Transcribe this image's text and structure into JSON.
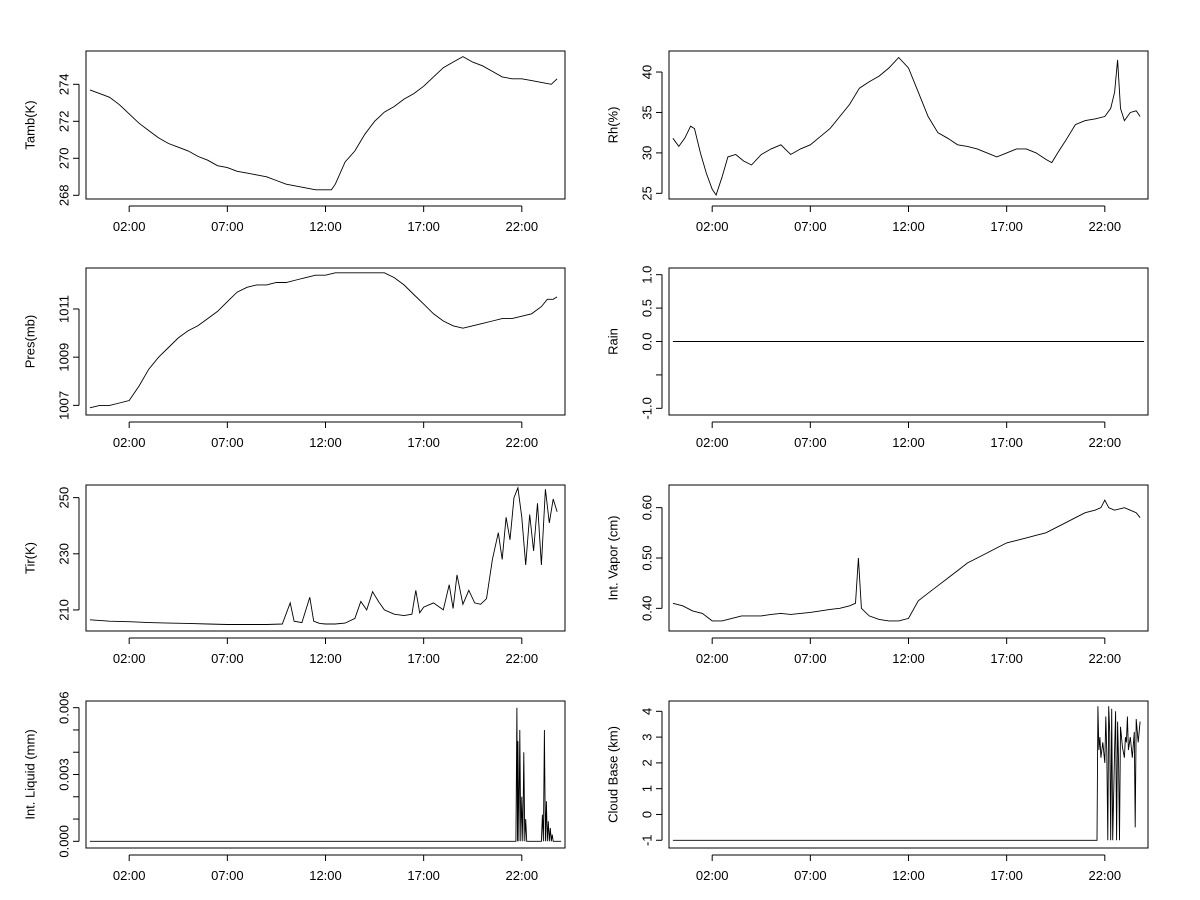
{
  "chart_data": [
    {
      "type": "line",
      "title": "",
      "xlabel": "",
      "ylabel": "Tamb(K)",
      "xlim": [
        -0.2,
        24.2
      ],
      "ylim": [
        267.8,
        275.8
      ],
      "xticks": [
        2,
        7,
        12,
        17,
        22
      ],
      "xtick_labels": [
        "02:00",
        "07:00",
        "12:00",
        "17:00",
        "22:00"
      ],
      "yticks": [
        268,
        270,
        272,
        274
      ],
      "ytick_labels": [
        "268",
        "270",
        "272",
        "274"
      ],
      "series": [
        {
          "x": [
            0.0,
            0.5,
            1.0,
            1.5,
            2.0,
            2.5,
            3.0,
            3.5,
            4.0,
            4.5,
            5.0,
            5.5,
            6.0,
            6.5,
            7.0,
            7.5,
            8.0,
            8.5,
            9.0,
            9.5,
            10.0,
            10.5,
            11.0,
            11.5,
            12.0,
            12.3,
            12.5,
            13.0,
            13.5,
            14.0,
            14.5,
            15.0,
            15.5,
            16.0,
            16.5,
            17.0,
            17.5,
            18.0,
            18.5,
            19.0,
            19.5,
            20.0,
            20.5,
            21.0,
            21.5,
            22.0,
            22.5,
            23.0,
            23.5,
            23.8
          ],
          "y": [
            273.7,
            273.5,
            273.3,
            272.9,
            272.4,
            271.9,
            271.5,
            271.1,
            270.8,
            270.6,
            270.4,
            270.1,
            269.9,
            269.6,
            269.5,
            269.3,
            269.2,
            269.1,
            269.0,
            268.8,
            268.6,
            268.5,
            268.4,
            268.3,
            268.3,
            268.3,
            268.6,
            269.8,
            270.4,
            271.3,
            272.0,
            272.5,
            272.8,
            273.2,
            273.5,
            273.9,
            274.4,
            274.9,
            275.2,
            275.5,
            275.2,
            275.0,
            274.7,
            274.4,
            274.3,
            274.3,
            274.2,
            274.1,
            274.0,
            274.3
          ]
        }
      ]
    },
    {
      "type": "line",
      "title": "",
      "xlabel": "",
      "ylabel": "Rh(%)",
      "xlim": [
        -0.2,
        24.2
      ],
      "ylim": [
        24.3,
        42.6
      ],
      "xticks": [
        2,
        7,
        12,
        17,
        22
      ],
      "xtick_labels": [
        "02:00",
        "07:00",
        "12:00",
        "17:00",
        "22:00"
      ],
      "yticks": [
        25,
        30,
        35,
        40
      ],
      "ytick_labels": [
        "25",
        "30",
        "35",
        "40"
      ],
      "series": [
        {
          "x": [
            0.0,
            0.3,
            0.6,
            0.9,
            1.1,
            1.4,
            1.7,
            2.0,
            2.2,
            2.5,
            2.8,
            3.2,
            3.6,
            4.0,
            4.5,
            5.0,
            5.5,
            6.0,
            6.5,
            7.0,
            7.5,
            8.0,
            8.5,
            9.0,
            9.5,
            10.0,
            10.5,
            11.0,
            11.5,
            12.0,
            12.5,
            13.0,
            13.5,
            14.0,
            14.5,
            15.0,
            15.5,
            16.0,
            16.5,
            17.0,
            17.5,
            18.0,
            18.5,
            19.0,
            19.3,
            19.6,
            20.0,
            20.5,
            21.0,
            21.5,
            22.0,
            22.3,
            22.5,
            22.65,
            22.8,
            23.0,
            23.3,
            23.6,
            23.8
          ],
          "y": [
            31.8,
            30.8,
            31.8,
            33.3,
            33.0,
            30.0,
            27.5,
            25.5,
            24.8,
            27.0,
            29.5,
            29.8,
            29.0,
            28.5,
            29.8,
            30.5,
            31.0,
            29.8,
            30.5,
            31.0,
            32.0,
            33.0,
            34.5,
            36.0,
            38.0,
            38.8,
            39.5,
            40.5,
            41.8,
            40.5,
            37.5,
            34.5,
            32.5,
            31.8,
            31.0,
            30.8,
            30.5,
            30.0,
            29.5,
            30.0,
            30.5,
            30.5,
            30.0,
            29.2,
            28.8,
            30.0,
            31.5,
            33.5,
            34.0,
            34.2,
            34.5,
            35.5,
            37.5,
            41.5,
            35.5,
            34.0,
            35.0,
            35.2,
            34.5
          ]
        }
      ]
    },
    {
      "type": "line",
      "title": "",
      "xlabel": "",
      "ylabel": "Pres(mb)",
      "xlim": [
        -0.2,
        24.2
      ],
      "ylim": [
        1006.6,
        1012.7
      ],
      "xticks": [
        2,
        7,
        12,
        17,
        22
      ],
      "xtick_labels": [
        "02:00",
        "07:00",
        "12:00",
        "17:00",
        "22:00"
      ],
      "yticks": [
        1007,
        1009,
        1011
      ],
      "ytick_labels": [
        "1007",
        "1009",
        "1011"
      ],
      "series": [
        {
          "x": [
            0.0,
            0.5,
            1.0,
            1.5,
            2.0,
            2.5,
            3.0,
            3.5,
            4.0,
            4.5,
            5.0,
            5.5,
            6.0,
            6.5,
            7.0,
            7.5,
            8.0,
            8.5,
            9.0,
            9.5,
            10.0,
            10.5,
            11.0,
            11.5,
            12.0,
            12.5,
            13.0,
            13.5,
            14.0,
            14.5,
            15.0,
            15.5,
            16.0,
            16.5,
            17.0,
            17.5,
            18.0,
            18.5,
            19.0,
            19.5,
            20.0,
            20.5,
            21.0,
            21.5,
            22.0,
            22.5,
            23.0,
            23.3,
            23.6,
            23.8
          ],
          "y": [
            1006.9,
            1007.0,
            1007.0,
            1007.1,
            1007.2,
            1007.8,
            1008.5,
            1009.0,
            1009.4,
            1009.8,
            1010.1,
            1010.3,
            1010.6,
            1010.9,
            1011.3,
            1011.7,
            1011.9,
            1012.0,
            1012.0,
            1012.1,
            1012.1,
            1012.2,
            1012.3,
            1012.4,
            1012.4,
            1012.5,
            1012.5,
            1012.5,
            1012.5,
            1012.5,
            1012.5,
            1012.3,
            1012.0,
            1011.6,
            1011.2,
            1010.8,
            1010.5,
            1010.3,
            1010.2,
            1010.3,
            1010.4,
            1010.5,
            1010.6,
            1010.6,
            1010.7,
            1010.8,
            1011.1,
            1011.4,
            1011.4,
            1011.5
          ]
        }
      ]
    },
    {
      "type": "line",
      "title": "",
      "xlabel": "",
      "ylabel": "Rain",
      "xlim": [
        -0.2,
        24.2
      ],
      "ylim": [
        -1.1,
        1.1
      ],
      "xticks": [
        2,
        7,
        12,
        17,
        22
      ],
      "xtick_labels": [
        "02:00",
        "07:00",
        "12:00",
        "17:00",
        "22:00"
      ],
      "yticks": [
        -1.0,
        -0.5,
        0.0,
        0.5,
        1.0
      ],
      "ytick_labels": [
        "-1.0",
        "",
        "0.0",
        "0.5",
        "1.0"
      ],
      "series": [
        {
          "x": [
            0.0,
            24.0
          ],
          "y": [
            0.0,
            0.0
          ]
        }
      ]
    },
    {
      "type": "line",
      "title": "",
      "xlabel": "",
      "ylabel": "Tir(K)",
      "xlim": [
        -0.2,
        24.2
      ],
      "ylim": [
        202.5,
        254.5
      ],
      "xticks": [
        2,
        7,
        12,
        17,
        22
      ],
      "xtick_labels": [
        "02:00",
        "07:00",
        "12:00",
        "17:00",
        "22:00"
      ],
      "yticks": [
        210,
        230,
        250
      ],
      "ytick_labels": [
        "210",
        "230",
        "250"
      ],
      "series": [
        {
          "x": [
            0.0,
            1.0,
            2.0,
            3.0,
            4.0,
            5.0,
            6.0,
            7.0,
            8.0,
            9.0,
            9.8,
            10.2,
            10.4,
            10.8,
            11.2,
            11.4,
            11.7,
            12.0,
            12.5,
            13.0,
            13.5,
            13.8,
            14.1,
            14.4,
            14.7,
            15.0,
            15.5,
            16.0,
            16.4,
            16.6,
            16.8,
            17.0,
            17.5,
            18.0,
            18.3,
            18.5,
            18.7,
            19.0,
            19.3,
            19.6,
            19.9,
            20.2,
            20.5,
            20.8,
            21.0,
            21.2,
            21.4,
            21.6,
            21.8,
            22.0,
            22.2,
            22.4,
            22.6,
            22.8,
            23.0,
            23.2,
            23.4,
            23.6,
            23.8
          ],
          "y": [
            206.5,
            206.0,
            205.8,
            205.5,
            205.3,
            205.2,
            205.0,
            204.8,
            204.8,
            204.8,
            205.0,
            212.5,
            206.0,
            205.5,
            214.5,
            206.0,
            205.2,
            205.0,
            205.0,
            205.3,
            207.0,
            213.0,
            210.0,
            216.5,
            213.0,
            210.0,
            208.5,
            208.0,
            208.5,
            217.0,
            209.0,
            211.0,
            212.5,
            210.0,
            219.0,
            210.5,
            222.5,
            212.0,
            217.0,
            212.5,
            212.0,
            214.0,
            228.0,
            237.5,
            228.0,
            243.0,
            235.0,
            250.0,
            253.5,
            243.0,
            226.0,
            244.0,
            231.0,
            248.0,
            226.0,
            253.0,
            241.0,
            249.5,
            245.0
          ]
        }
      ]
    },
    {
      "type": "line",
      "title": "",
      "xlabel": "",
      "ylabel": "Int. Vapor (cm)",
      "xlim": [
        -0.2,
        24.2
      ],
      "ylim": [
        0.355,
        0.645
      ],
      "xticks": [
        2,
        7,
        12,
        17,
        22
      ],
      "xtick_labels": [
        "02:00",
        "07:00",
        "12:00",
        "17:00",
        "22:00"
      ],
      "yticks": [
        0.4,
        0.5,
        0.6
      ],
      "ytick_labels": [
        "0.40",
        "0.50",
        "0.60"
      ],
      "series": [
        {
          "x": [
            0.0,
            0.5,
            1.0,
            1.5,
            2.0,
            2.5,
            3.0,
            3.5,
            4.0,
            4.5,
            5.0,
            5.5,
            6.0,
            6.5,
            7.0,
            7.5,
            8.0,
            8.5,
            9.0,
            9.3,
            9.45,
            9.6,
            10.0,
            10.5,
            11.0,
            11.5,
            12.0,
            12.5,
            13.0,
            13.5,
            14.0,
            14.5,
            15.0,
            15.5,
            16.0,
            16.5,
            17.0,
            17.5,
            18.0,
            18.5,
            19.0,
            19.5,
            20.0,
            20.5,
            21.0,
            21.5,
            21.8,
            22.0,
            22.2,
            22.5,
            23.0,
            23.3,
            23.6,
            23.8
          ],
          "y": [
            0.41,
            0.405,
            0.395,
            0.39,
            0.375,
            0.375,
            0.38,
            0.385,
            0.385,
            0.385,
            0.388,
            0.39,
            0.388,
            0.39,
            0.392,
            0.395,
            0.398,
            0.4,
            0.405,
            0.41,
            0.5,
            0.4,
            0.385,
            0.378,
            0.375,
            0.375,
            0.38,
            0.415,
            0.43,
            0.445,
            0.46,
            0.475,
            0.49,
            0.5,
            0.51,
            0.52,
            0.53,
            0.535,
            0.54,
            0.545,
            0.55,
            0.56,
            0.57,
            0.58,
            0.59,
            0.595,
            0.6,
            0.615,
            0.6,
            0.595,
            0.6,
            0.595,
            0.59,
            0.58
          ]
        }
      ]
    },
    {
      "type": "line",
      "title": "",
      "xlabel": "",
      "ylabel": "Int. Liquid (mm)",
      "xlim": [
        -0.2,
        24.2
      ],
      "ylim": [
        -0.0003,
        0.0063
      ],
      "xticks": [
        2,
        7,
        12,
        17,
        22
      ],
      "xtick_labels": [
        "02:00",
        "07:00",
        "12:00",
        "17:00",
        "22:00"
      ],
      "yticks": [
        0.0,
        0.001,
        0.002,
        0.003,
        0.004,
        0.005,
        0.006
      ],
      "ytick_labels": [
        "0.000",
        "",
        "",
        "0.003",
        "",
        "",
        "0.006"
      ],
      "series": [
        {
          "x": [
            0.0,
            21.7,
            21.75,
            21.78,
            21.8,
            21.85,
            21.9,
            21.95,
            22.0,
            22.05,
            22.1,
            22.15,
            22.2,
            22.25,
            22.3,
            23.0,
            23.05,
            23.1,
            23.15,
            23.2,
            23.25,
            23.3,
            23.35,
            23.4,
            23.45,
            23.5,
            23.55,
            23.6,
            24.0
          ],
          "y": [
            0.0,
            0.0,
            0.006,
            0.0,
            0.0045,
            0.0,
            0.005,
            0.0,
            0.002,
            0.0,
            0.004,
            0.0,
            0.001,
            0.0,
            0.0,
            0.0,
            0.0012,
            0.0,
            0.005,
            0.0,
            0.0018,
            0.0,
            0.0009,
            0.0,
            0.0006,
            0.0,
            0.0003,
            0.0,
            0.0
          ]
        }
      ]
    },
    {
      "type": "line",
      "title": "",
      "xlabel": "",
      "ylabel": "Cloud Base (km)",
      "xlim": [
        -0.2,
        24.2
      ],
      "ylim": [
        -1.3,
        4.4
      ],
      "xticks": [
        2,
        7,
        12,
        17,
        22
      ],
      "xtick_labels": [
        "02:00",
        "07:00",
        "12:00",
        "17:00",
        "22:00"
      ],
      "yticks": [
        -1,
        0,
        1,
        2,
        3,
        4
      ],
      "ytick_labels": [
        "-1",
        "0",
        "1",
        "2",
        "3",
        "4"
      ],
      "series": [
        {
          "x": [
            0.0,
            21.6,
            21.65,
            21.7,
            21.75,
            21.8,
            21.9,
            22.0,
            22.05,
            22.1,
            22.15,
            22.2,
            22.25,
            22.3,
            22.35,
            22.4,
            22.5,
            22.55,
            22.6,
            22.65,
            22.7,
            22.75,
            22.8,
            22.9,
            23.0,
            23.05,
            23.1,
            23.15,
            23.2,
            23.3,
            23.4,
            23.5,
            23.55,
            23.6,
            23.7,
            23.8
          ],
          "y": [
            -1.0,
            -1.0,
            4.2,
            2.5,
            3.0,
            2.2,
            2.8,
            2.0,
            3.8,
            2.4,
            -1.0,
            4.2,
            3.2,
            -1.0,
            4.1,
            -1.0,
            2.5,
            4.0,
            -1.0,
            3.6,
            2.0,
            -1.0,
            3.4,
            2.6,
            2.2,
            3.0,
            2.8,
            3.8,
            2.5,
            3.0,
            2.2,
            3.2,
            -0.5,
            3.7,
            2.8,
            3.6
          ]
        }
      ]
    }
  ]
}
